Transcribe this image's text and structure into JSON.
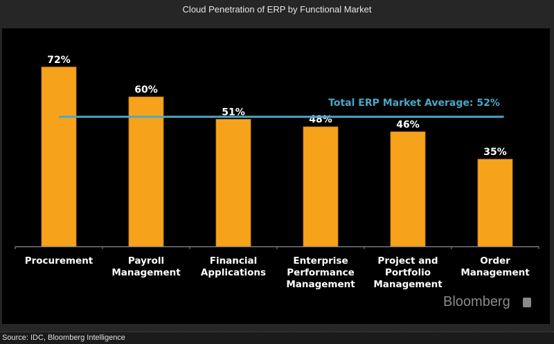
{
  "title": "Cloud Penetration of ERP by Functional Market",
  "source": "Source: IDC, Bloomberg Intelligence",
  "brand": "Bloomberg",
  "colors": {
    "bar": "#F7A21B",
    "average_line": "#4AA8C8",
    "background": "#000000"
  },
  "chart_data": {
    "type": "bar",
    "title": "Cloud Penetration of ERP by Functional Market",
    "xlabel": "",
    "ylabel": "",
    "ylim": [
      0,
      75
    ],
    "grid": false,
    "categories": [
      [
        "Procurement"
      ],
      [
        "Payroll",
        "Management"
      ],
      [
        "Financial",
        "Applications"
      ],
      [
        "Enterprise",
        "Performance",
        "Management"
      ],
      [
        "Project and",
        "Portfolio",
        "Management"
      ],
      [
        "Order",
        "Management"
      ]
    ],
    "values": [
      72,
      60,
      51,
      48,
      46,
      35
    ],
    "value_labels": [
      "72%",
      "60%",
      "51%",
      "48%",
      "46%",
      "35%"
    ],
    "reference_line": {
      "value": 52,
      "label": "Total ERP Market Average: 52%"
    }
  }
}
